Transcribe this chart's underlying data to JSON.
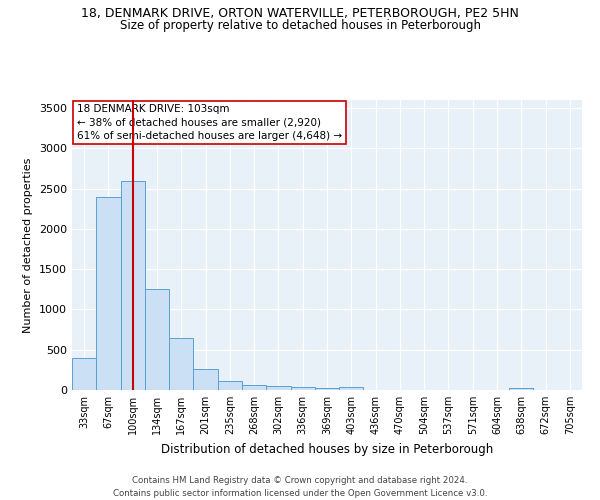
{
  "title1": "18, DENMARK DRIVE, ORTON WATERVILLE, PETERBOROUGH, PE2 5HN",
  "title2": "Size of property relative to detached houses in Peterborough",
  "xlabel": "Distribution of detached houses by size in Peterborough",
  "ylabel": "Number of detached properties",
  "categories": [
    "33sqm",
    "67sqm",
    "100sqm",
    "134sqm",
    "167sqm",
    "201sqm",
    "235sqm",
    "268sqm",
    "302sqm",
    "336sqm",
    "369sqm",
    "403sqm",
    "436sqm",
    "470sqm",
    "504sqm",
    "537sqm",
    "571sqm",
    "604sqm",
    "638sqm",
    "672sqm",
    "705sqm"
  ],
  "values": [
    400,
    2390,
    2600,
    1250,
    640,
    260,
    110,
    60,
    55,
    40,
    30,
    35,
    0,
    0,
    0,
    0,
    0,
    0,
    30,
    0,
    0
  ],
  "bar_color": "#cce0f5",
  "bar_edge_color": "#5a9fd4",
  "vline_x_index": 2,
  "vline_color": "#cc0000",
  "ylim": [
    0,
    3600
  ],
  "yticks": [
    0,
    500,
    1000,
    1500,
    2000,
    2500,
    3000,
    3500
  ],
  "annotation_line1": "18 DENMARK DRIVE: 103sqm",
  "annotation_line2": "← 38% of detached houses are smaller (2,920)",
  "annotation_line3": "61% of semi-detached houses are larger (4,648) →",
  "annotation_box_color": "#ffffff",
  "annotation_box_edge": "#cc0000",
  "bg_color": "#e8f0f8",
  "footer1": "Contains HM Land Registry data © Crown copyright and database right 2024.",
  "footer2": "Contains public sector information licensed under the Open Government Licence v3.0."
}
